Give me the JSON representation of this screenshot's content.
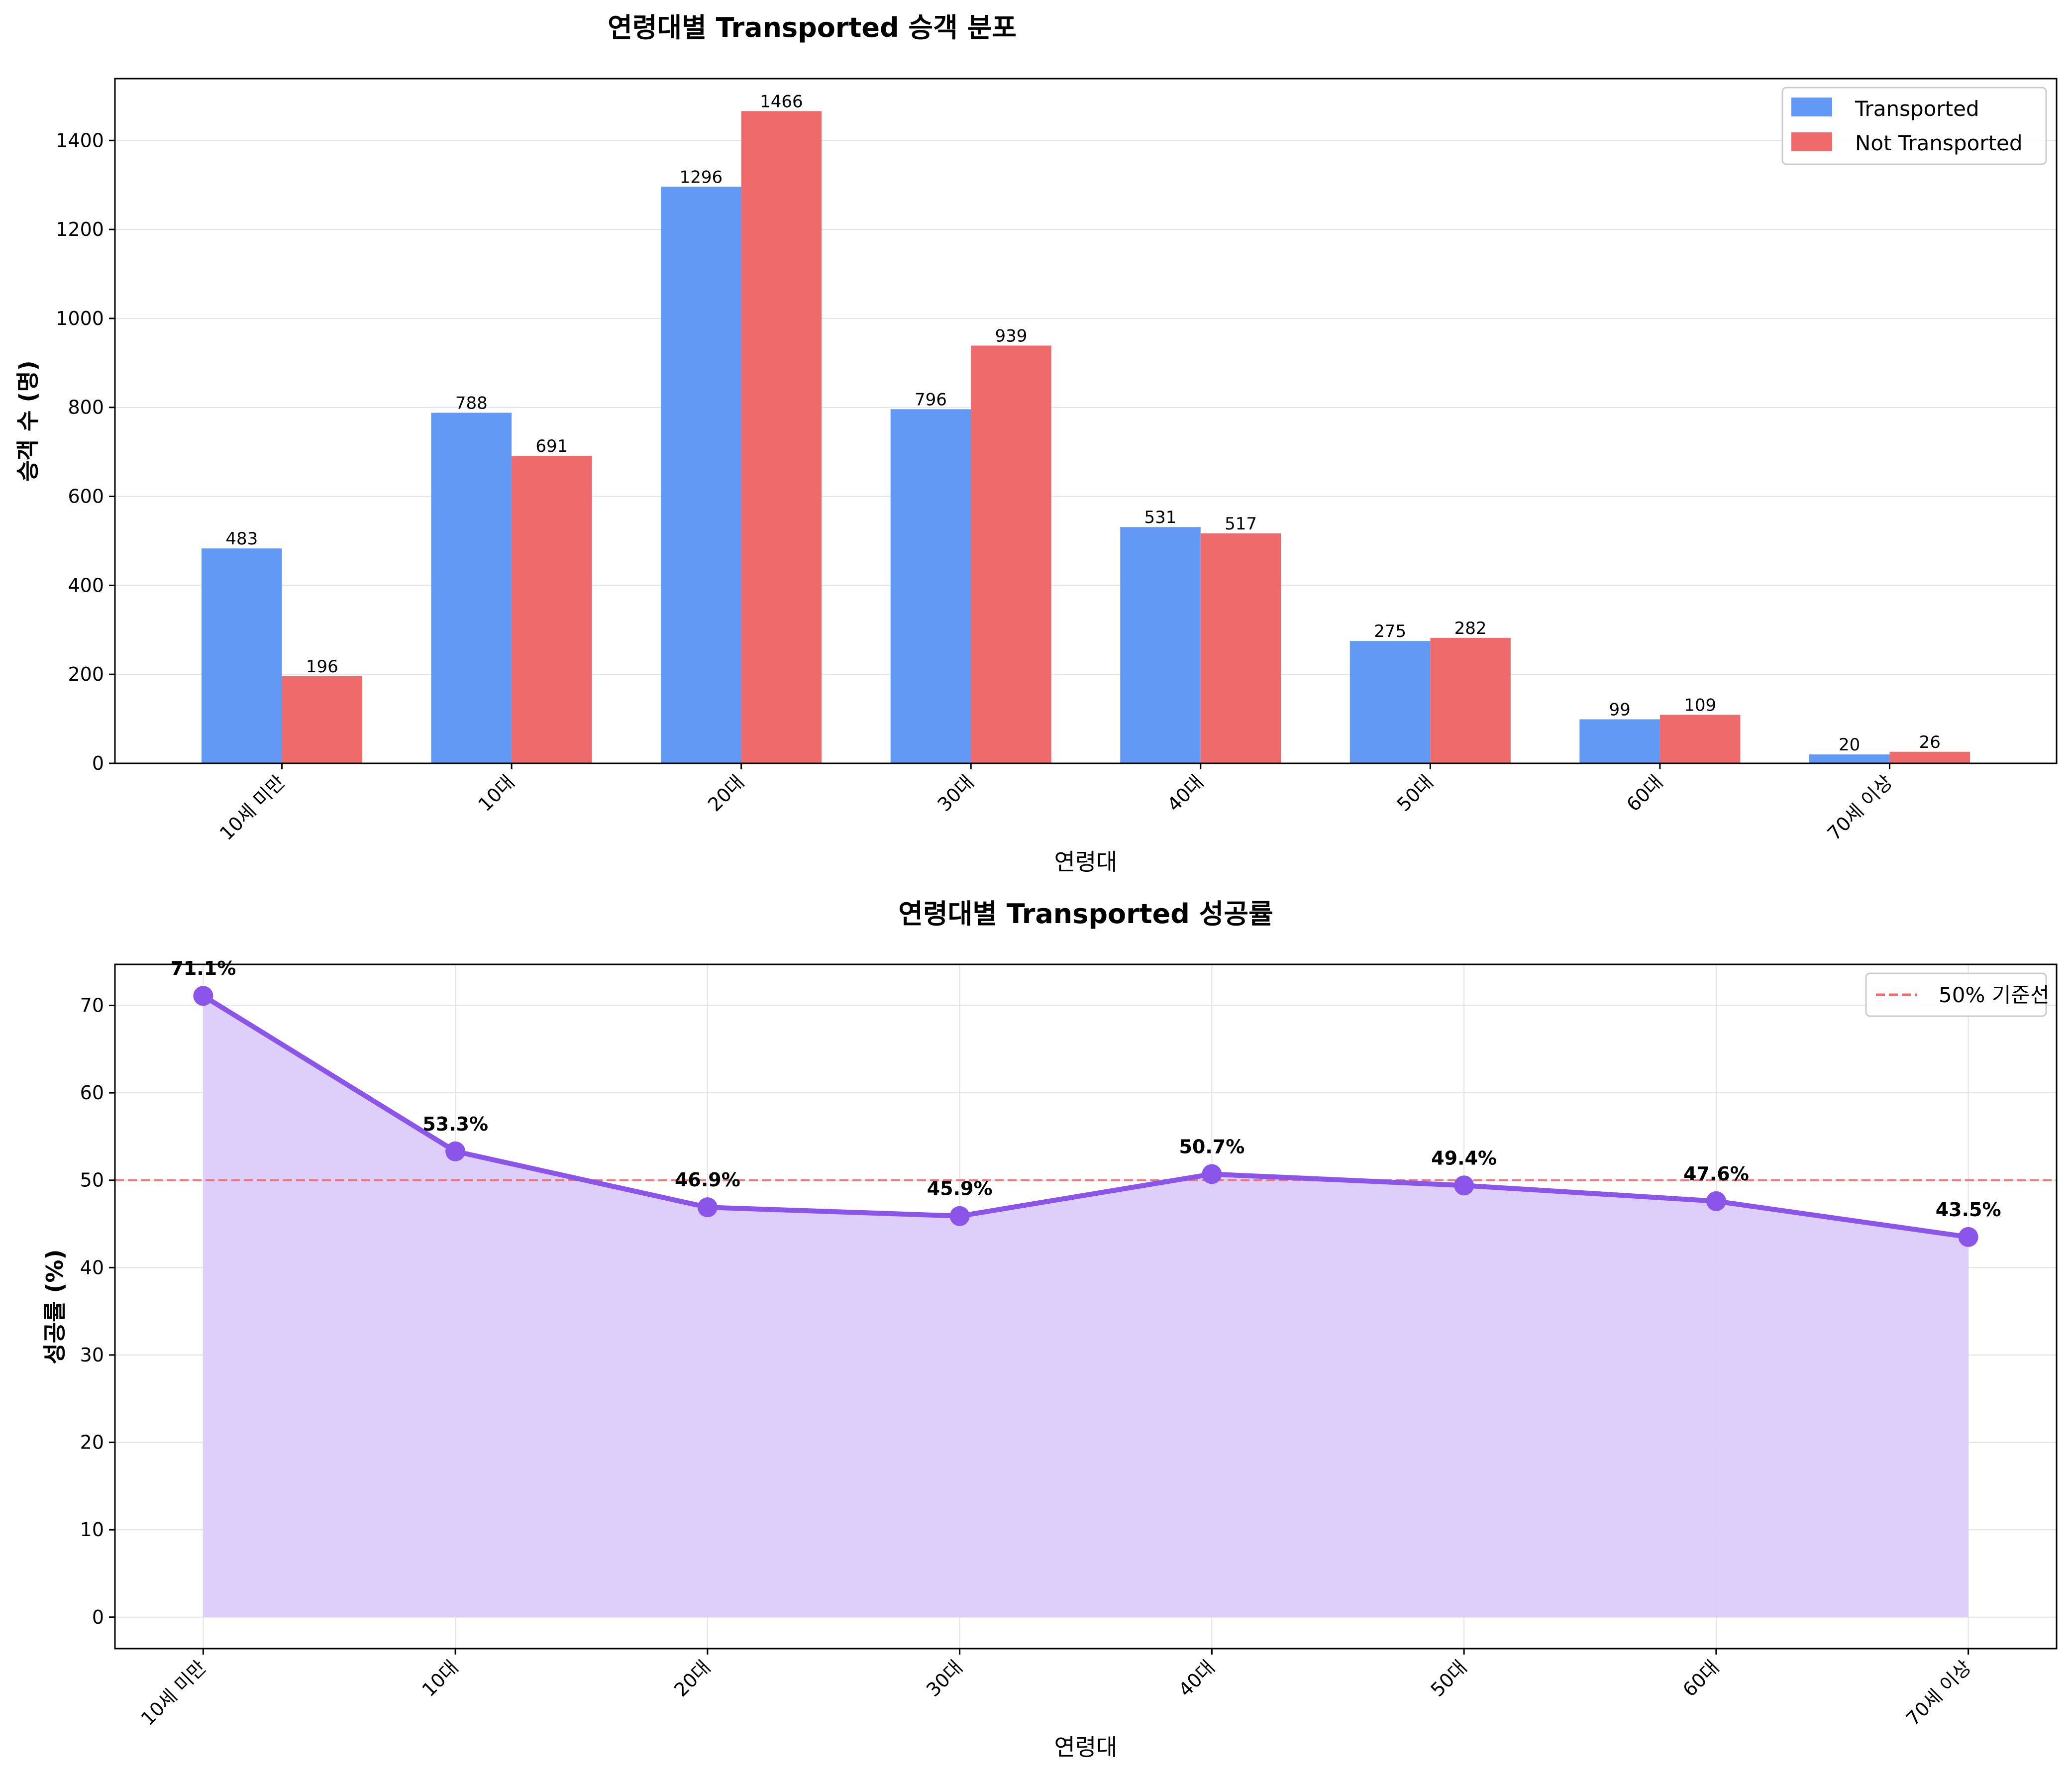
{
  "chart_data": [
    {
      "type": "bar",
      "title": "연령대별 Transported 승객 분포",
      "xlabel": "연령대",
      "ylabel": "승객 수 (명)",
      "categories": [
        "10세 미만",
        "10대",
        "20대",
        "30대",
        "40대",
        "50대",
        "60대",
        "70세 이상"
      ],
      "series": [
        {
          "name": "Transported",
          "color": "#6199f5",
          "values": [
            483,
            788,
            1296,
            796,
            531,
            275,
            99,
            20
          ]
        },
        {
          "name": "Not Transported",
          "color": "#ef6a6b",
          "values": [
            196,
            691,
            1466,
            939,
            517,
            282,
            109,
            26
          ]
        }
      ],
      "ylim": [
        0,
        1539
      ],
      "yticks": [
        0,
        200,
        400,
        600,
        800,
        1000,
        1200,
        1400
      ],
      "grid": true,
      "legend": "top-right"
    },
    {
      "type": "line",
      "title": "연령대별 Transported 성공률",
      "xlabel": "연령대",
      "ylabel": "성공률 (%)",
      "categories": [
        "10세 미만",
        "10대",
        "20대",
        "30대",
        "40대",
        "50대",
        "60대",
        "70세 이상"
      ],
      "series": [
        {
          "name": "",
          "color": "#8b55ea",
          "fill": "#dccbfa",
          "values": [
            71.1,
            53.3,
            46.9,
            45.9,
            50.7,
            49.4,
            47.6,
            43.5
          ]
        }
      ],
      "point_labels": [
        "71.1%",
        "53.3%",
        "46.9%",
        "45.9%",
        "50.7%",
        "49.4%",
        "47.6%",
        "43.5%"
      ],
      "reference_line": {
        "value": 50,
        "label": "50% 기준선",
        "color": "#f06b6b"
      },
      "ylim": [
        -3.6,
        74.7
      ],
      "yticks": [
        0,
        10,
        20,
        30,
        40,
        50,
        60,
        70
      ],
      "grid": true,
      "legend": "top-right"
    }
  ]
}
